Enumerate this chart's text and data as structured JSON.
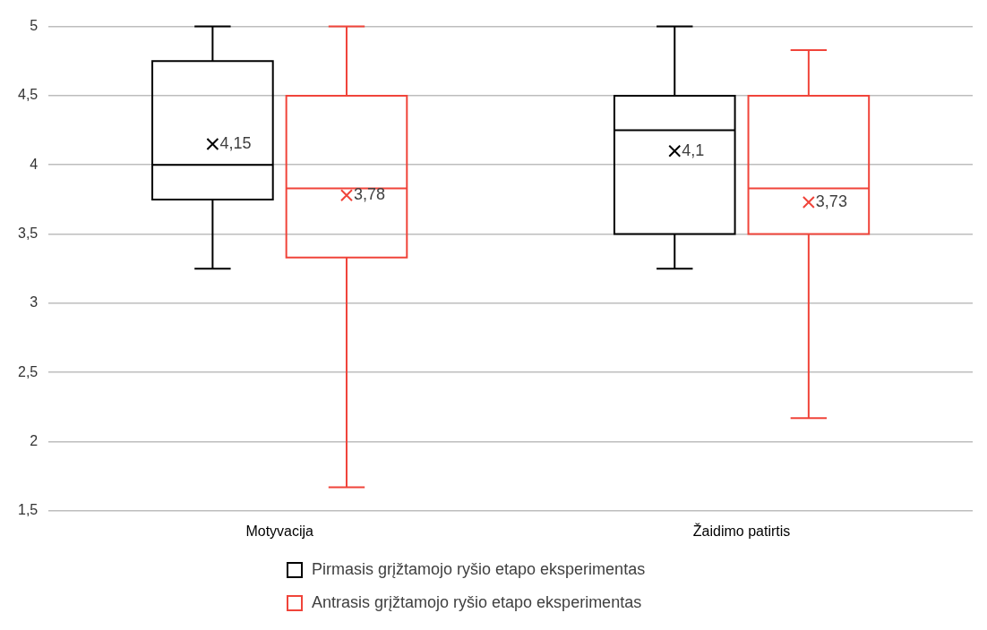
{
  "chart_data": {
    "type": "box",
    "categories": [
      "Motyvacija",
      "Žaidimo patirtis"
    ],
    "series": [
      {
        "name": "Pirmasis grįžtamojo ryšio etapo eksperimentas",
        "color": "#000000",
        "boxes": [
          {
            "low": 3.25,
            "q1": 3.75,
            "median": 4,
            "q3": 4.75,
            "high": 5,
            "mean": 4.15
          },
          {
            "low": 3.25,
            "q1": 3.5,
            "median": 4.25,
            "q3": 4.5,
            "high": 5,
            "mean": 4.1
          }
        ],
        "value_labels": [
          "4,15",
          "4,1"
        ]
      },
      {
        "name": "Antrasis grįžtamojo ryšio etapo eksperimentas",
        "color": "#f0443a",
        "boxes": [
          {
            "low": 1.67,
            "q1": 3.33,
            "median": 3.83,
            "q3": 4.5,
            "high": 5,
            "mean": 3.78
          },
          {
            "low": 2.17,
            "q1": 3.5,
            "median": 3.83,
            "q3": 4.5,
            "high": 4.83,
            "mean": 3.73
          }
        ],
        "value_labels": [
          "3,78",
          "3,73"
        ]
      }
    ],
    "ylim": [
      1.5,
      5
    ],
    "yticks": [
      {
        "value": 1.5,
        "label": "1,5"
      },
      2,
      {
        "value": 2.5,
        "label": "2,5"
      },
      3,
      {
        "value": 3.5,
        "label": "3,5"
      },
      4,
      {
        "value": 4.5,
        "label": "4,5"
      },
      5
    ],
    "grid": "y",
    "marker": "cross",
    "legend": "bottom"
  }
}
